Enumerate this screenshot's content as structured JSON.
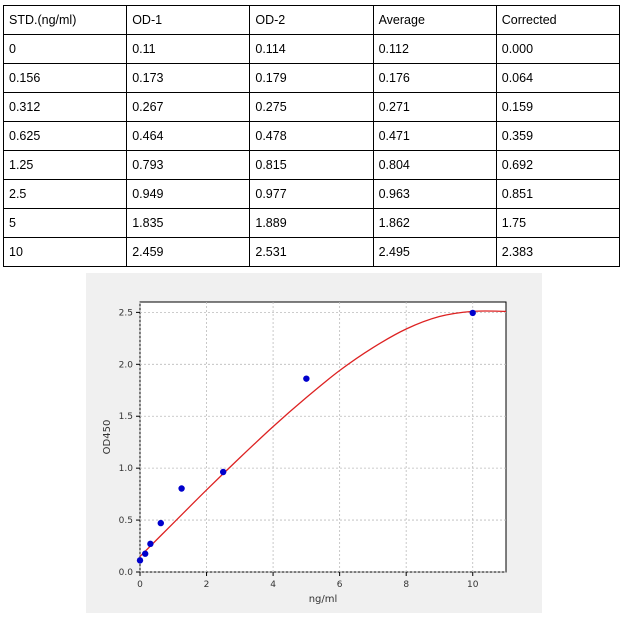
{
  "table": {
    "headers": [
      "STD.(ng/ml)",
      "OD-1",
      "OD-2",
      "Average",
      "Corrected"
    ],
    "rows": [
      [
        "0",
        "0.11",
        "0.114",
        "0.112",
        "0.000"
      ],
      [
        "0.156",
        "0.173",
        "0.179",
        "0.176",
        "0.064"
      ],
      [
        "0.312",
        "0.267",
        "0.275",
        "0.271",
        "0.159"
      ],
      [
        "0.625",
        "0.464",
        "0.478",
        "0.471",
        "0.359"
      ],
      [
        "1.25",
        "0.793",
        "0.815",
        "0.804",
        "0.692"
      ],
      [
        "2.5",
        "0.949",
        "0.977",
        "0.963",
        "0.851"
      ],
      [
        "5",
        "1.835",
        "1.889",
        "1.862",
        "1.75"
      ],
      [
        "10",
        "2.459",
        "2.531",
        "2.495",
        "2.383"
      ]
    ]
  },
  "chart_data": {
    "type": "scatter",
    "xlabel": "ng/ml",
    "ylabel": "OD450",
    "xlim": [
      0,
      11
    ],
    "ylim": [
      0,
      2.6
    ],
    "xticks": [
      "0",
      "2",
      "4",
      "6",
      "8",
      "10"
    ],
    "yticks": [
      "0.0",
      "0.5",
      "1.0",
      "1.5",
      "2.0",
      "2.5"
    ],
    "grid": true,
    "points": {
      "x": [
        0,
        0.156,
        0.312,
        0.625,
        1.25,
        2.5,
        5,
        10
      ],
      "y": [
        0.112,
        0.176,
        0.271,
        0.471,
        0.804,
        0.963,
        1.862,
        2.495
      ]
    },
    "fit_curve": {
      "x": [
        0,
        1,
        2,
        3,
        4,
        5,
        6,
        7,
        8,
        9,
        10,
        11
      ],
      "y": [
        0.15,
        0.47,
        0.79,
        1.1,
        1.4,
        1.68,
        1.94,
        2.16,
        2.34,
        2.46,
        2.51,
        2.51
      ]
    },
    "colors": {
      "points": "#0000cc",
      "curve": "#dd2222",
      "background": "#f0f0f0",
      "plot_area": "#ffffff",
      "grid": "#bbbbbb"
    }
  }
}
